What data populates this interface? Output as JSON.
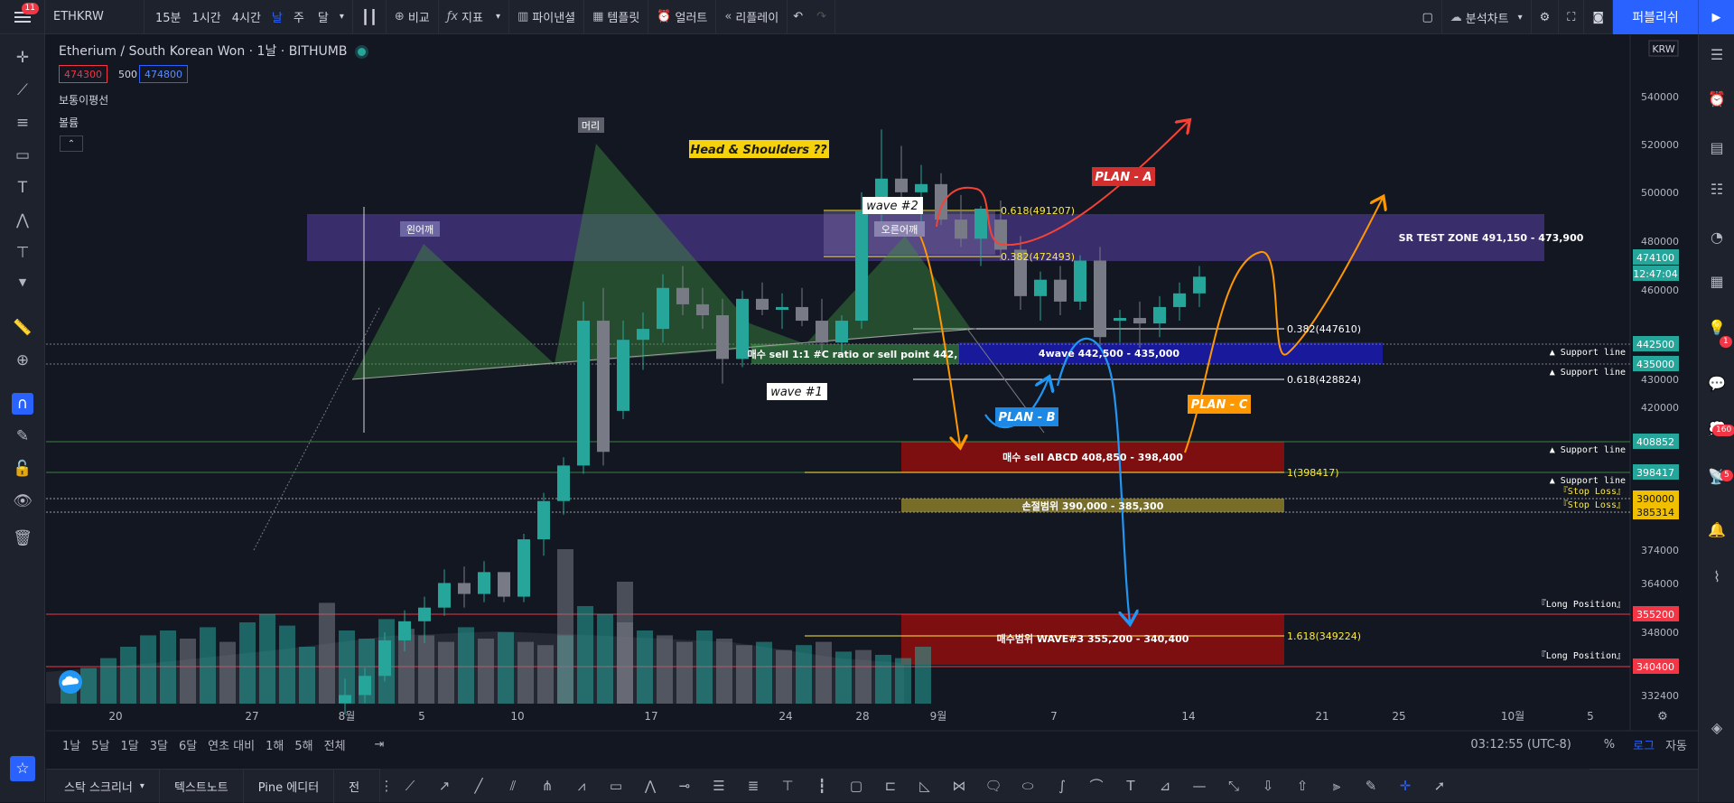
{
  "topbar": {
    "symbol": "ETHKRW",
    "intervals": [
      "15분",
      "1시간",
      "4시간",
      "날",
      "주",
      "달"
    ],
    "active_interval": "날",
    "compare": "비교",
    "indicators": "지표",
    "financials": "파이낸셜",
    "templates": "템플릿",
    "alert": "얼러트",
    "replay": "리플레이",
    "analysis_chart": "분석차트",
    "publish": "퍼블리쉬",
    "menu_badge": "11"
  },
  "legend": {
    "title": "Etherium / South Korean Won · 1날 · BITHUMB",
    "bid": "474300",
    "spread": "500",
    "ask": "474800",
    "indicator_ma": "보통이평선",
    "indicator_volume": "볼륨"
  },
  "price_axis": {
    "currency": "KRW",
    "ticks": [
      "540000",
      "520000",
      "500000",
      "480000",
      "460000",
      "430000",
      "420000",
      "374000",
      "364000",
      "348000",
      "332400"
    ],
    "last_price": "474100",
    "countdown": "12:47:04",
    "labels": [
      {
        "text": "442500",
        "color": "#26a69a"
      },
      {
        "text": "435000",
        "color": "#26a69a"
      },
      {
        "text": "408852",
        "color": "#26a69a"
      },
      {
        "text": "398417",
        "color": "#26a69a"
      },
      {
        "text": "390000",
        "color": "#f0c000"
      },
      {
        "text": "385314",
        "color": "#f0c000"
      },
      {
        "text": "355200",
        "color": "#f23645"
      },
      {
        "text": "340400",
        "color": "#f23645"
      }
    ]
  },
  "time_axis": {
    "ticks": [
      "20",
      "27",
      "8월",
      "5",
      "10",
      "17",
      "24",
      "28",
      "9월",
      "7",
      "14",
      "21",
      "25",
      "10월",
      "5"
    ]
  },
  "chart_data": {
    "type": "candlestick",
    "title": "Etherium / South Korean Won · 1날 · BITHUMB",
    "candles": [
      {
        "o": 318000,
        "h": 327000,
        "l": 314000,
        "c": 321000
      },
      {
        "o": 321000,
        "h": 331000,
        "l": 318000,
        "c": 328000
      },
      {
        "o": 328000,
        "h": 344000,
        "l": 326000,
        "c": 341000
      },
      {
        "o": 341000,
        "h": 352000,
        "l": 337000,
        "c": 348000
      },
      {
        "o": 348000,
        "h": 357000,
        "l": 340000,
        "c": 353000
      },
      {
        "o": 353000,
        "h": 367000,
        "l": 350000,
        "c": 362000
      },
      {
        "o": 362000,
        "h": 368000,
        "l": 353000,
        "c": 358000
      },
      {
        "o": 358000,
        "h": 370000,
        "l": 355000,
        "c": 366000
      },
      {
        "o": 366000,
        "h": 366000,
        "l": 355000,
        "c": 357000
      },
      {
        "o": 357000,
        "h": 380000,
        "l": 355000,
        "c": 378000
      },
      {
        "o": 378000,
        "h": 395000,
        "l": 372000,
        "c": 392000
      },
      {
        "o": 392000,
        "h": 408000,
        "l": 387000,
        "c": 405000
      },
      {
        "o": 405000,
        "h": 465000,
        "l": 402000,
        "c": 458000
      },
      {
        "o": 458000,
        "h": 470000,
        "l": 405000,
        "c": 410000
      },
      {
        "o": 425000,
        "h": 458000,
        "l": 422000,
        "c": 451000
      },
      {
        "o": 451000,
        "h": 461000,
        "l": 440000,
        "c": 455000
      },
      {
        "o": 455000,
        "h": 475000,
        "l": 450000,
        "c": 470000
      },
      {
        "o": 470000,
        "h": 478000,
        "l": 460000,
        "c": 464000
      },
      {
        "o": 464000,
        "h": 470000,
        "l": 455000,
        "c": 460000
      },
      {
        "o": 460000,
        "h": 466000,
        "l": 435000,
        "c": 444000
      },
      {
        "o": 444000,
        "h": 469000,
        "l": 441000,
        "c": 466000
      },
      {
        "o": 466000,
        "h": 472000,
        "l": 460000,
        "c": 462000
      },
      {
        "o": 462000,
        "h": 468000,
        "l": 455000,
        "c": 463000
      },
      {
        "o": 463000,
        "h": 470000,
        "l": 456000,
        "c": 458000
      },
      {
        "o": 458000,
        "h": 466000,
        "l": 445000,
        "c": 450000
      },
      {
        "o": 450000,
        "h": 460000,
        "l": 445000,
        "c": 458000
      },
      {
        "o": 458000,
        "h": 505000,
        "l": 455000,
        "c": 498000
      },
      {
        "o": 498000,
        "h": 528000,
        "l": 493000,
        "c": 510000
      },
      {
        "o": 510000,
        "h": 522000,
        "l": 498000,
        "c": 505000
      },
      {
        "o": 505000,
        "h": 515000,
        "l": 490000,
        "c": 508000
      },
      {
        "o": 508000,
        "h": 512000,
        "l": 493000,
        "c": 495000
      },
      {
        "o": 495000,
        "h": 504000,
        "l": 485000,
        "c": 488000
      },
      {
        "o": 488000,
        "h": 500000,
        "l": 478000,
        "c": 499000
      },
      {
        "o": 495000,
        "h": 502000,
        "l": 480000,
        "c": 484000
      },
      {
        "o": 484000,
        "h": 489000,
        "l": 462000,
        "c": 467000
      },
      {
        "o": 467000,
        "h": 476000,
        "l": 458000,
        "c": 473000
      },
      {
        "o": 473000,
        "h": 478000,
        "l": 460000,
        "c": 465000
      },
      {
        "o": 465000,
        "h": 482000,
        "l": 462000,
        "c": 480000
      },
      {
        "o": 480000,
        "h": 485000,
        "l": 448000,
        "c": 452000
      },
      {
        "o": 458000,
        "h": 462000,
        "l": 450000,
        "c": 459000
      },
      {
        "o": 459000,
        "h": 465000,
        "l": 448000,
        "c": 457000
      },
      {
        "o": 457000,
        "h": 467000,
        "l": 452000,
        "c": 463000
      },
      {
        "o": 463000,
        "h": 472000,
        "l": 458000,
        "c": 468000
      },
      {
        "o": 468000,
        "h": 478000,
        "l": 463000,
        "c": 474100
      }
    ],
    "volumes": [
      0.15,
      0.22,
      0.28,
      0.35,
      0.42,
      0.45,
      0.4,
      0.47,
      0.38,
      0.5,
      0.55,
      0.48,
      0.35,
      0.62,
      0.45,
      0.4,
      0.52,
      0.46,
      0.42,
      0.38,
      0.47,
      0.4,
      0.44,
      0.38,
      0.36,
      0.42,
      0.6,
      0.55,
      0.5,
      0.45,
      0.42,
      0.38,
      0.45,
      0.4,
      0.36,
      0.38,
      0.33,
      0.36,
      0.38,
      0.32,
      0.33,
      0.3,
      0.28,
      0.35
    ],
    "volume_spikes": [
      {
        "index": 17,
        "value": 0.75
      },
      {
        "index": 14,
        "value": 0.95
      }
    ],
    "ylim": [
      327000,
      552000
    ]
  },
  "annotations": {
    "zone_sr": "SR TEST ZONE 491,150 - 473,900",
    "zone_4wave": "4wave 442,500 - 435,000",
    "zone_sell_point": "매수 sell 1:1 #C ratio or sell point 442,",
    "zone_abcd": "매수 sell ABCD 408,850 - 398,400",
    "zone_stoploss": "손절범위 390,000 - 385,300",
    "zone_wave3": "매수범위 WAVE#3 355,200 - 340,400",
    "fib_0618_top": "0.618(491207)",
    "fib_0382_top": "0.382(472493)",
    "fib_0382": "0.382(447610)",
    "fib_0618": "0.618(428824)",
    "fib_1": "1(398417)",
    "fib_1618": "1.618(349224)",
    "head": "머리",
    "left_shoulder": "왼어깨",
    "right_shoulder": "오른어깨",
    "pattern": "Head & Shoulders ??",
    "wave1": "wave #1",
    "wave2": "wave #2",
    "plan_a": "PLAN - A",
    "plan_b": "PLAN - B",
    "plan_c": "PLAN - C",
    "support": "▲ Support line",
    "stop_loss": "『Stop Loss』",
    "long_position": "『Long Position』"
  },
  "bottombar": {
    "ranges": [
      "1날",
      "5날",
      "1달",
      "3달",
      "6달",
      "연초 대비",
      "1해",
      "5해",
      "전체"
    ],
    "time": "03:12:55 (UTC-8)",
    "percent": "%",
    "log": "로그",
    "auto": "자동"
  },
  "footer": {
    "tabs": [
      "스탁 스크리너",
      "텍스트노트",
      "Pine 에디터",
      "전"
    ]
  },
  "rightbar": {
    "chat_badge": "1",
    "notif_badge_a": "160",
    "notif_badge_b": "5"
  },
  "colors": {
    "up": "#26a69a",
    "down": "#787b86",
    "accent": "#2962ff",
    "background": "#131722"
  }
}
